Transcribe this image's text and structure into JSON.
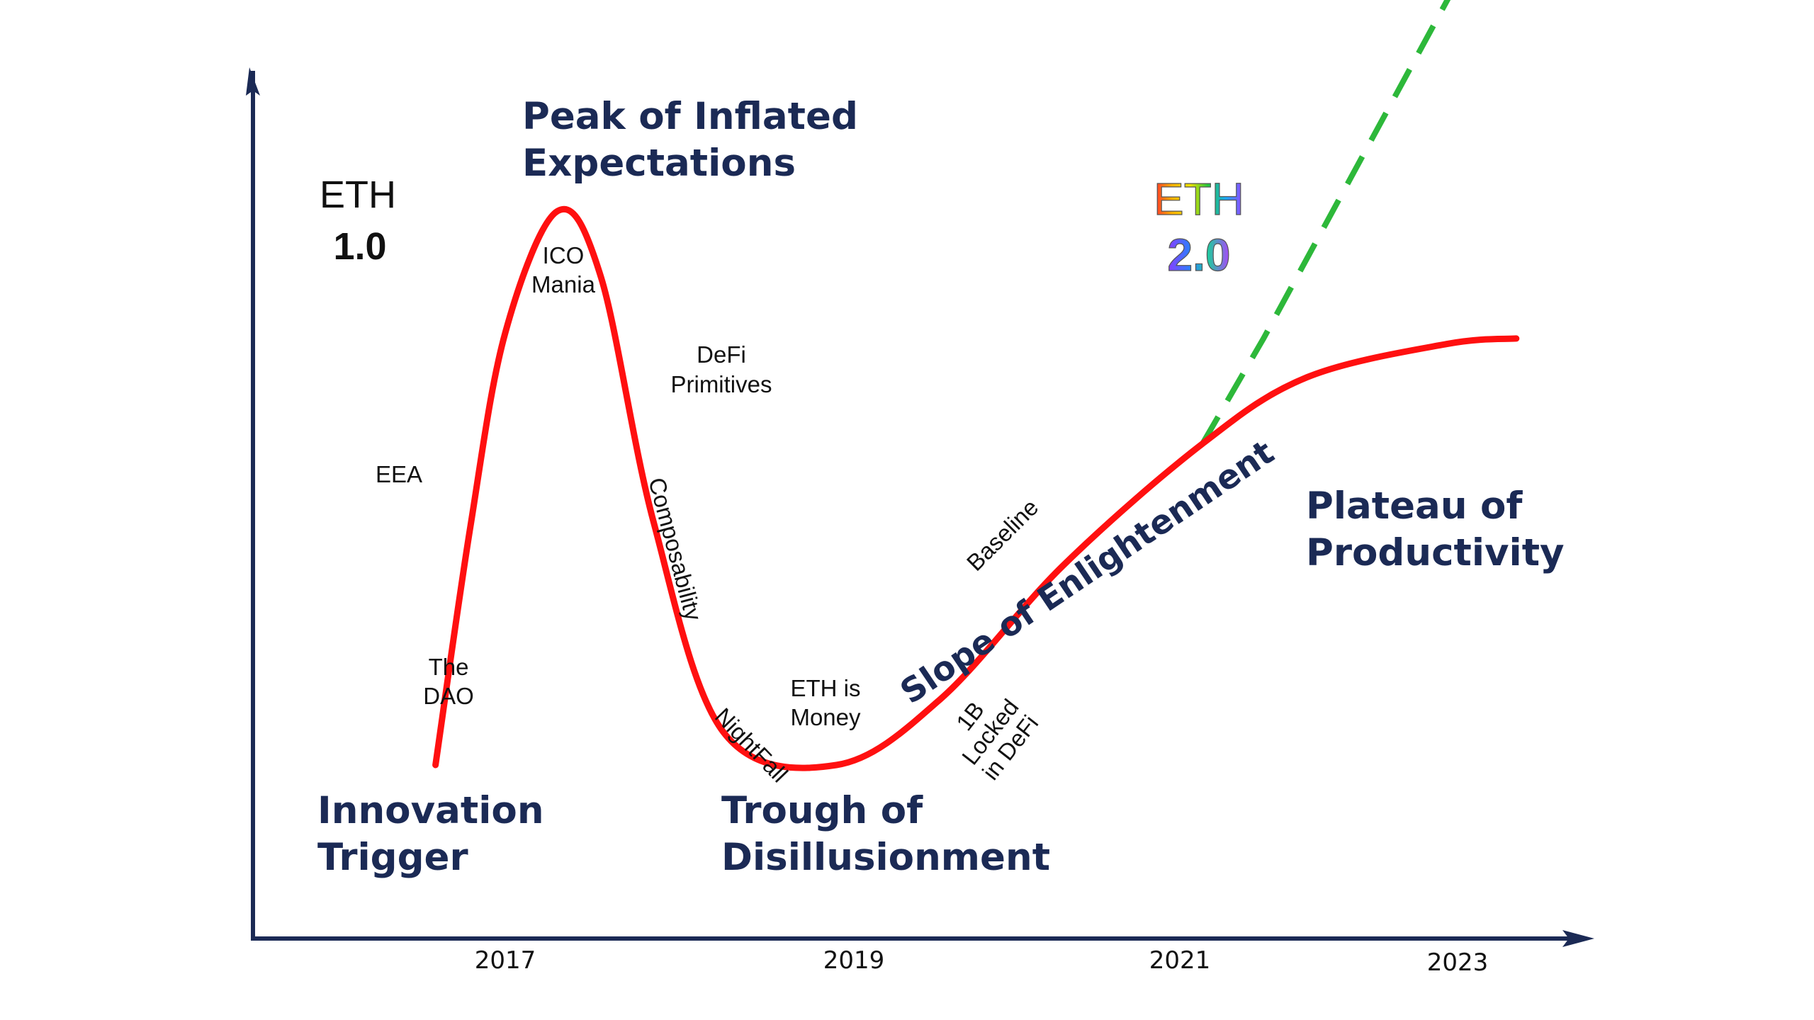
{
  "chart_data": {
    "type": "line",
    "title": "",
    "xlabel": "",
    "ylabel": "",
    "x_ticks": [
      "2017",
      "2019",
      "2021",
      "2023"
    ],
    "grid": false,
    "series": [
      {
        "style": "solid",
        "color": "#ff1010",
        "points": [
          {
            "x": 2016.6,
            "y": 0.0
          },
          {
            "x": 2016.8,
            "y": 0.43
          },
          {
            "x": 2017.0,
            "y": 0.78
          },
          {
            "x": 2017.3,
            "y": 1.0
          },
          {
            "x": 2017.55,
            "y": 0.88
          },
          {
            "x": 2017.85,
            "y": 0.44
          },
          {
            "x": 2018.25,
            "y": 0.06
          },
          {
            "x": 2018.9,
            "y": 0.0
          },
          {
            "x": 2019.5,
            "y": 0.12
          },
          {
            "x": 2020.2,
            "y": 0.36
          },
          {
            "x": 2021.0,
            "y": 0.58
          },
          {
            "x": 2021.6,
            "y": 0.7
          },
          {
            "x": 2022.4,
            "y": 0.76
          },
          {
            "x": 2022.8,
            "y": 0.77
          }
        ]
      },
      {
        "style": "dashed",
        "color": "#2db83a",
        "points": [
          {
            "x": 2021.0,
            "y": 0.58
          },
          {
            "x": 2021.35,
            "y": 0.77
          },
          {
            "x": 2022.8,
            "y": 1.61
          }
        ]
      }
    ],
    "phases": {
      "innovation": [
        "Innovation",
        "Trigger"
      ],
      "peak": [
        "Peak of Inflated",
        "Expectations"
      ],
      "trough": [
        "Trough of",
        "Disillusionment"
      ],
      "slope": "Slope of Enlightenment",
      "plateau": [
        "Plateau of",
        "Productivity"
      ]
    },
    "annotations": {
      "eth1": [
        "ETH",
        "1.0"
      ],
      "eth2": [
        "ETH",
        "2.0"
      ],
      "the_dao": [
        "The",
        "DAO"
      ],
      "eea": "EEA",
      "ico_mania": [
        "ICO",
        "Mania"
      ],
      "defi_primitives": [
        "DeFi",
        "Primitives"
      ],
      "composability": "Composability",
      "nightfall": "NightFall",
      "eth_is_money": [
        "ETH is",
        "Money"
      ],
      "baseline": "Baseline",
      "locked_defi": [
        "1B",
        "Locked",
        "in DeFi"
      ]
    },
    "colors": {
      "curve": "#ff1010",
      "projection": "#2db83a",
      "phase_text": "#1b2a55",
      "axis": "#1b2a55"
    }
  }
}
